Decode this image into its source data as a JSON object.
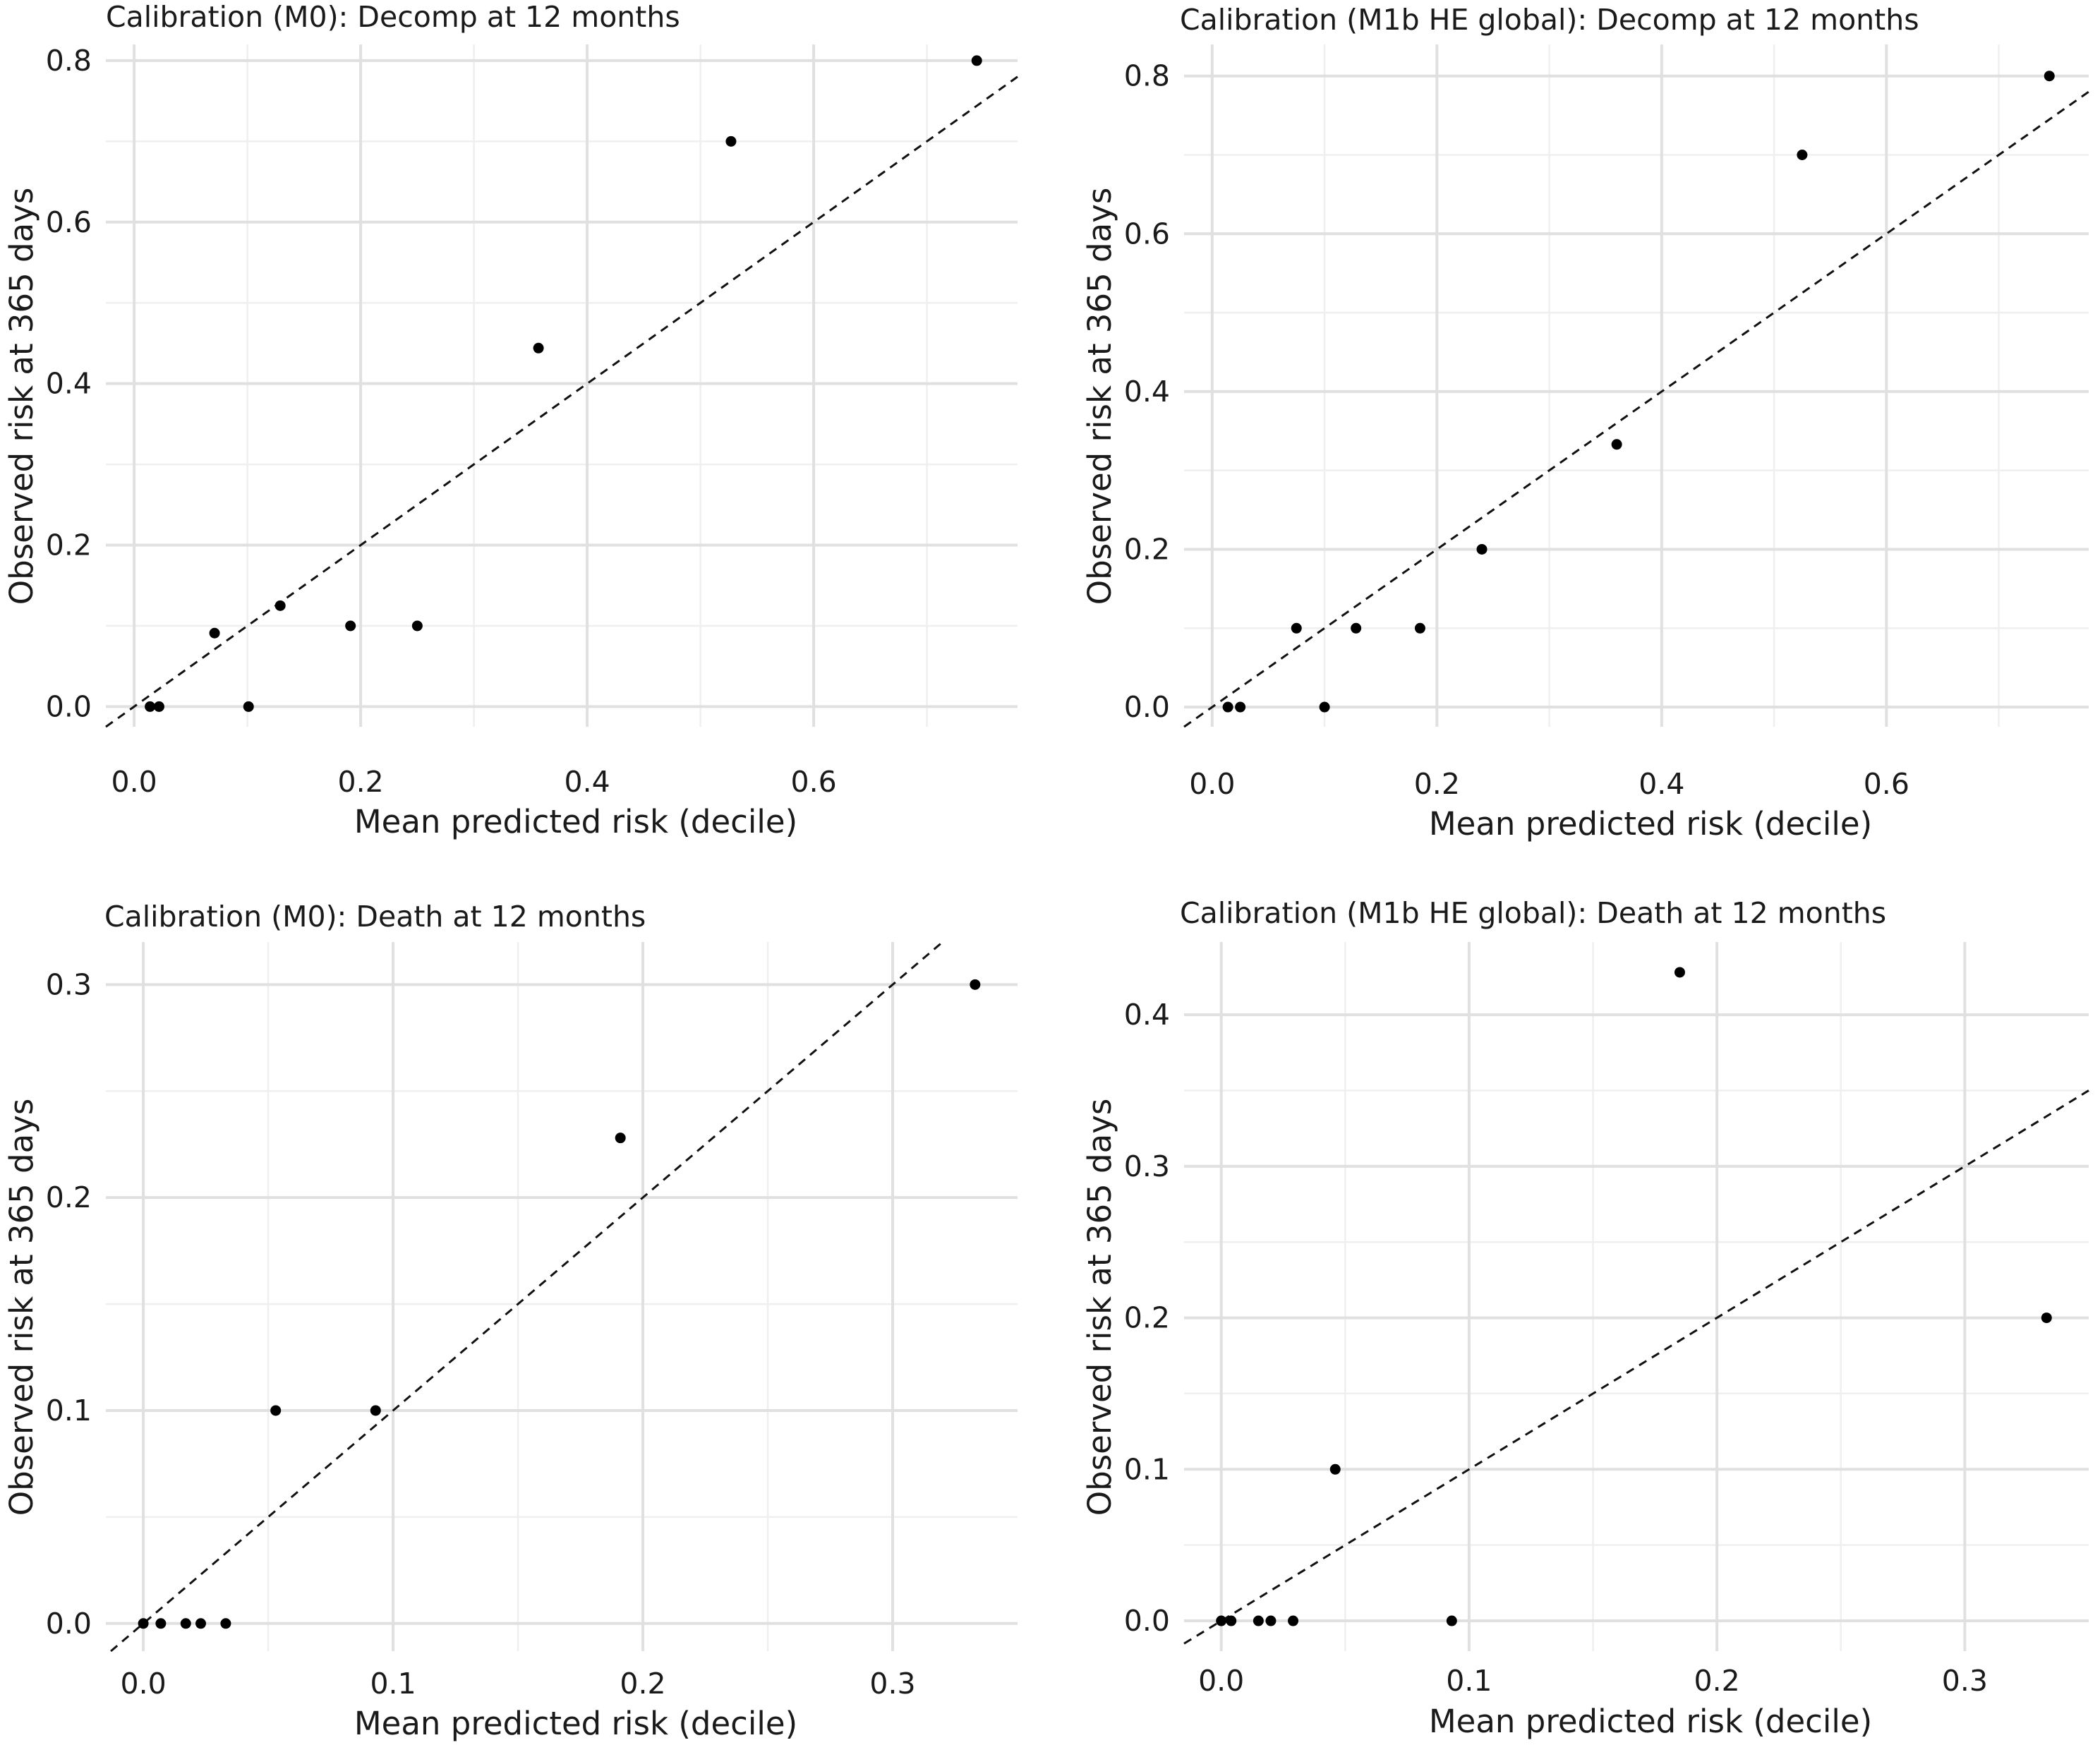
{
  "chart_data": [
    {
      "type": "scatter",
      "title": "Calibration (M0): Decomp at 12 months",
      "xlabel": "Mean predicted risk (decile)",
      "ylabel": "Observed risk at 365 days",
      "xlim": [
        -0.025,
        0.78
      ],
      "ylim": [
        -0.025,
        0.82
      ],
      "xticks": [
        0.0,
        0.2,
        0.4,
        0.6
      ],
      "xtick_labels": [
        "0.0",
        "0.2",
        "0.4",
        "0.6"
      ],
      "yticks": [
        0.0,
        0.2,
        0.4,
        0.6,
        0.8
      ],
      "ytick_labels": [
        "0.0",
        "0.2",
        "0.4",
        "0.6",
        "0.8"
      ],
      "reference_line": "y = x",
      "grid": true,
      "points": {
        "x": [
          0.014,
          0.022,
          0.071,
          0.101,
          0.129,
          0.191,
          0.25,
          0.357,
          0.527,
          0.744
        ],
        "y": [
          0.0,
          0.0,
          0.091,
          0.0,
          0.125,
          0.1,
          0.1,
          0.444,
          0.7,
          0.8
        ]
      }
    },
    {
      "type": "scatter",
      "title": "Calibration (M1b HE global): Decomp at 12 months",
      "xlabel": "Mean predicted risk (decile)",
      "ylabel": "Observed risk at 365 days",
      "xlim": [
        -0.025,
        0.78
      ],
      "ylim": [
        -0.025,
        0.84
      ],
      "xticks": [
        0.0,
        0.2,
        0.4,
        0.6
      ],
      "xtick_labels": [
        "0.0",
        "0.2",
        "0.4",
        "0.6"
      ],
      "yticks": [
        0.0,
        0.2,
        0.4,
        0.6,
        0.8
      ],
      "ytick_labels": [
        "0.0",
        "0.2",
        "0.4",
        "0.6",
        "0.8"
      ],
      "reference_line": "y = x",
      "grid": true,
      "points": {
        "x": [
          0.014,
          0.025,
          0.075,
          0.1,
          0.128,
          0.185,
          0.24,
          0.36,
          0.525,
          0.745
        ],
        "y": [
          0.0,
          0.0,
          0.1,
          0.0,
          0.1,
          0.1,
          0.2,
          0.333,
          0.7,
          0.8
        ]
      }
    },
    {
      "type": "scatter",
      "title": "Calibration (M0): Death at 12 months",
      "xlabel": "Mean predicted risk (decile)",
      "ylabel": "Observed risk at 365 days",
      "xlim": [
        -0.015,
        0.35
      ],
      "ylim": [
        -0.013,
        0.32
      ],
      "xticks": [
        0.0,
        0.1,
        0.2,
        0.3
      ],
      "xtick_labels": [
        "0.0",
        "0.1",
        "0.2",
        "0.3"
      ],
      "yticks": [
        0.0,
        0.1,
        0.2,
        0.3
      ],
      "ytick_labels": [
        "0.0",
        "0.1",
        "0.2",
        "0.3"
      ],
      "reference_line": "y = x",
      "grid": true,
      "points": {
        "x": [
          0.0,
          0.007,
          0.017,
          0.023,
          0.033,
          0.053,
          0.093,
          0.191,
          0.333
        ],
        "y": [
          0.0,
          0.0,
          0.0,
          0.0,
          0.0,
          0.1,
          0.1,
          0.228,
          0.3
        ]
      }
    },
    {
      "type": "scatter",
      "title": "Calibration (M1b HE global): Death at 12 months",
      "xlabel": "Mean predicted risk (decile)",
      "ylabel": "Observed risk at 365 days",
      "xlim": [
        -0.015,
        0.35
      ],
      "ylim": [
        -0.02,
        0.448
      ],
      "xticks": [
        0.0,
        0.1,
        0.2,
        0.3
      ],
      "xtick_labels": [
        "0.0",
        "0.1",
        "0.2",
        "0.3"
      ],
      "yticks": [
        0.0,
        0.1,
        0.2,
        0.3,
        0.4
      ],
      "ytick_labels": [
        "0.0",
        "0.1",
        "0.2",
        "0.3",
        "0.4"
      ],
      "reference_line": "y = x",
      "grid": true,
      "points": {
        "x": [
          0.0,
          0.004,
          0.015,
          0.02,
          0.029,
          0.046,
          0.093,
          0.185,
          0.333
        ],
        "y": [
          0.0,
          0.0,
          0.0,
          0.0,
          0.0,
          0.1,
          0.0,
          0.428,
          0.2
        ]
      }
    }
  ]
}
